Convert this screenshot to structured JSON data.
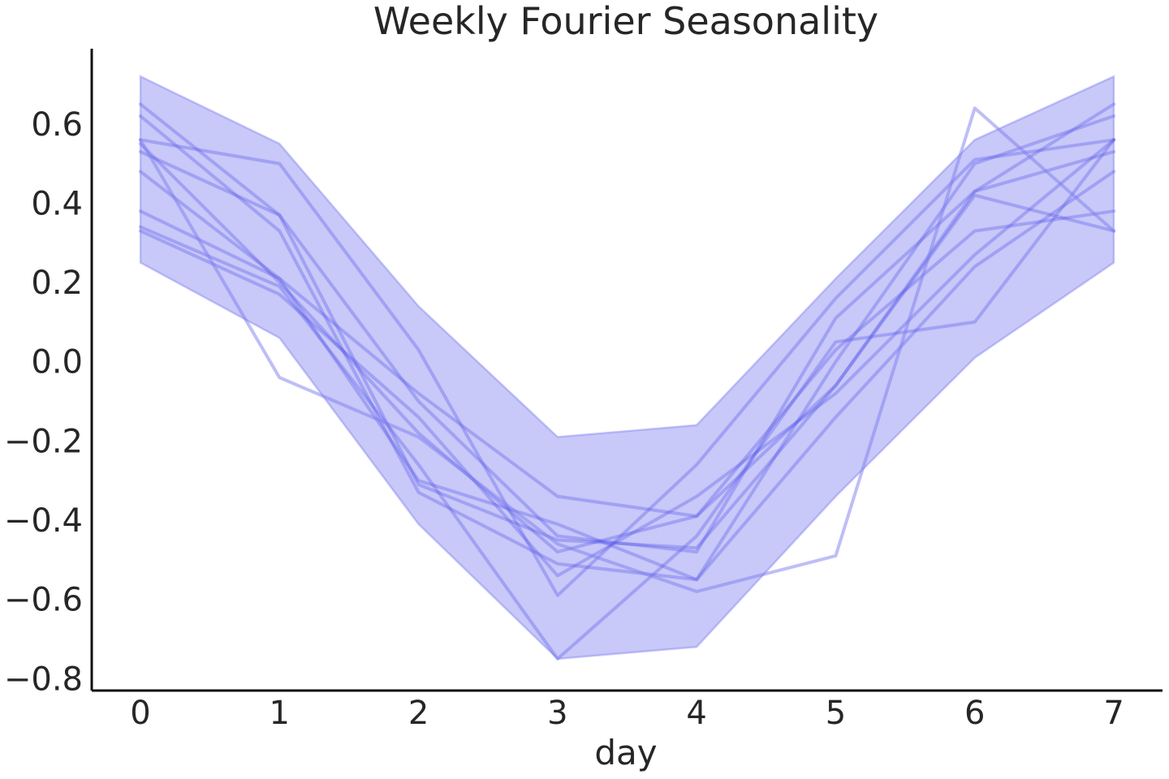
{
  "chart_data": {
    "type": "line",
    "title": "Weekly Fourier Seasonality",
    "xlabel": "day",
    "ylabel": "",
    "x": [
      0,
      1,
      2,
      3,
      4,
      5,
      6,
      7
    ],
    "xticks": [
      "0",
      "1",
      "2",
      "3",
      "4",
      "5",
      "6",
      "7"
    ],
    "yticks": [
      "−0.8",
      "−0.6",
      "−0.4",
      "−0.2",
      "0.0",
      "0.2",
      "0.4",
      "0.6"
    ],
    "ytick_values": [
      -0.8,
      -0.6,
      -0.4,
      -0.2,
      0.0,
      0.2,
      0.4,
      0.6
    ],
    "xlim": [
      -0.35,
      7.35
    ],
    "ylim": [
      -0.83,
      0.79
    ],
    "grid": false,
    "band": {
      "upper": [
        0.72,
        0.55,
        0.14,
        -0.19,
        -0.16,
        0.21,
        0.56,
        0.72
      ],
      "lower": [
        0.25,
        0.06,
        -0.41,
        -0.75,
        -0.72,
        -0.34,
        0.01,
        0.25
      ]
    },
    "series": [
      {
        "values": [
          0.65,
          0.37,
          -0.31,
          -0.45,
          -0.47,
          -0.06,
          0.43,
          0.65
        ]
      },
      {
        "values": [
          0.62,
          0.33,
          -0.33,
          -0.51,
          -0.55,
          0.0,
          0.5,
          0.62
        ]
      },
      {
        "values": [
          0.56,
          0.5,
          0.03,
          -0.59,
          -0.26,
          0.16,
          0.51,
          0.56
        ]
      },
      {
        "values": [
          0.55,
          0.2,
          -0.18,
          -0.48,
          -0.39,
          0.03,
          0.33,
          0.38
        ]
      },
      {
        "values": [
          0.53,
          0.37,
          -0.1,
          -0.44,
          -0.48,
          0.11,
          0.43,
          0.53
        ]
      },
      {
        "values": [
          0.48,
          0.21,
          -0.3,
          -0.41,
          -0.55,
          -0.14,
          0.24,
          0.48
        ]
      },
      {
        "values": [
          0.38,
          0.21,
          -0.08,
          -0.34,
          -0.39,
          -0.06,
          0.42,
          0.33
        ]
      },
      {
        "values": [
          0.33,
          0.17,
          -0.14,
          -0.54,
          -0.34,
          -0.08,
          0.27,
          0.56
        ]
      },
      {
        "values": [
          0.34,
          0.19,
          -0.26,
          -0.75,
          -0.44,
          0.05,
          0.1,
          0.56
        ]
      },
      {
        "values": [
          0.56,
          -0.04,
          -0.19,
          -0.46,
          -0.58,
          -0.49,
          0.64,
          0.33
        ]
      }
    ],
    "colors": {
      "band_fill": "#8c8cf2",
      "band_stroke": "#6a6aee",
      "line": "#5050e8",
      "last_line": "#7e7ef0",
      "text": "#262626",
      "axis": "#111111"
    }
  }
}
